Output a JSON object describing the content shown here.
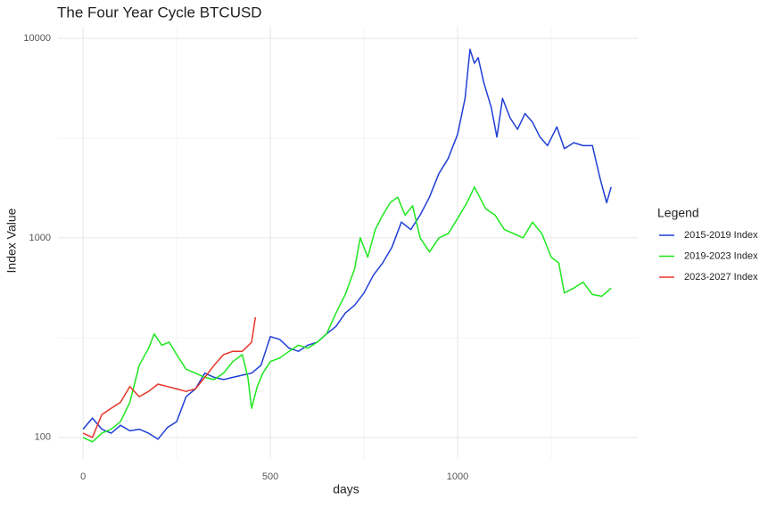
{
  "chart_data": {
    "type": "line",
    "title": "The Four Year Cycle BTCUSD",
    "x_label": "days",
    "y_label": "Index Value",
    "log_y": true,
    "grid": true,
    "legend_title": "Legend",
    "legend_position": "right",
    "xlim": [
      -67,
      1481
    ],
    "ylim": [
      78,
      11430
    ],
    "xticks": [
      0,
      500,
      1000
    ],
    "yticks": [
      100,
      1000,
      10000
    ],
    "x_minor_ticks": [
      250,
      750,
      1250
    ],
    "y_minor_ticks": [
      316.2,
      3162
    ],
    "series": [
      {
        "name": "2015-2019 Index",
        "color": "#1f3fd6",
        "x": [
          0,
          25,
          50,
          75,
          100,
          125,
          150,
          175,
          200,
          225,
          250,
          275,
          300,
          325,
          350,
          375,
          400,
          425,
          450,
          475,
          500,
          525,
          550,
          575,
          600,
          625,
          650,
          675,
          700,
          725,
          750,
          775,
          800,
          825,
          850,
          875,
          900,
          925,
          950,
          975,
          1000,
          1020,
          1033,
          1045,
          1055,
          1070,
          1090,
          1105,
          1120,
          1140,
          1160,
          1180,
          1200,
          1220,
          1240,
          1265,
          1285,
          1310,
          1335,
          1360,
          1380,
          1398,
          1410
        ],
        "values": [
          110,
          125,
          110,
          105,
          115,
          108,
          110,
          105,
          98,
          112,
          120,
          160,
          175,
          210,
          200,
          195,
          200,
          205,
          210,
          230,
          320,
          310,
          280,
          270,
          290,
          300,
          330,
          360,
          420,
          460,
          530,
          650,
          750,
          900,
          1200,
          1100,
          1300,
          1600,
          2100,
          2500,
          3300,
          5000,
          8800,
          7500,
          8000,
          6000,
          4500,
          3200,
          5000,
          4000,
          3500,
          4200,
          3800,
          3200,
          2900,
          3600,
          2800,
          3000,
          2900,
          2900,
          2000,
          1500,
          1800
        ]
      },
      {
        "name": "2019-2023 Index",
        "color": "#1de81d",
        "x": [
          0,
          25,
          50,
          75,
          100,
          125,
          150,
          175,
          190,
          210,
          230,
          250,
          275,
          300,
          325,
          350,
          375,
          400,
          425,
          440,
          450,
          465,
          480,
          500,
          525,
          550,
          575,
          600,
          625,
          650,
          675,
          700,
          725,
          740,
          760,
          780,
          800,
          820,
          840,
          860,
          880,
          900,
          925,
          950,
          975,
          1000,
          1025,
          1045,
          1075,
          1100,
          1125,
          1150,
          1175,
          1200,
          1225,
          1250,
          1270,
          1285,
          1310,
          1335,
          1360,
          1385,
          1410
        ],
        "values": [
          100,
          95,
          105,
          110,
          120,
          150,
          230,
          280,
          330,
          290,
          300,
          260,
          220,
          210,
          200,
          195,
          210,
          240,
          260,
          200,
          140,
          180,
          210,
          240,
          250,
          270,
          290,
          280,
          300,
          330,
          420,
          520,
          700,
          1000,
          800,
          1100,
          1300,
          1500,
          1600,
          1300,
          1450,
          1000,
          850,
          1000,
          1050,
          1250,
          1500,
          1800,
          1400,
          1300,
          1100,
          1050,
          1000,
          1200,
          1050,
          800,
          750,
          530,
          560,
          600,
          520,
          510,
          560
        ]
      },
      {
        "name": "2023-2027 Index",
        "color": "#e8352a",
        "x": [
          0,
          25,
          50,
          75,
          100,
          125,
          150,
          175,
          200,
          225,
          250,
          275,
          300,
          325,
          350,
          375,
          400,
          425,
          450,
          460
        ],
        "values": [
          105,
          100,
          130,
          140,
          150,
          180,
          160,
          170,
          185,
          180,
          175,
          170,
          175,
          200,
          230,
          260,
          270,
          270,
          300,
          400
        ]
      }
    ]
  }
}
